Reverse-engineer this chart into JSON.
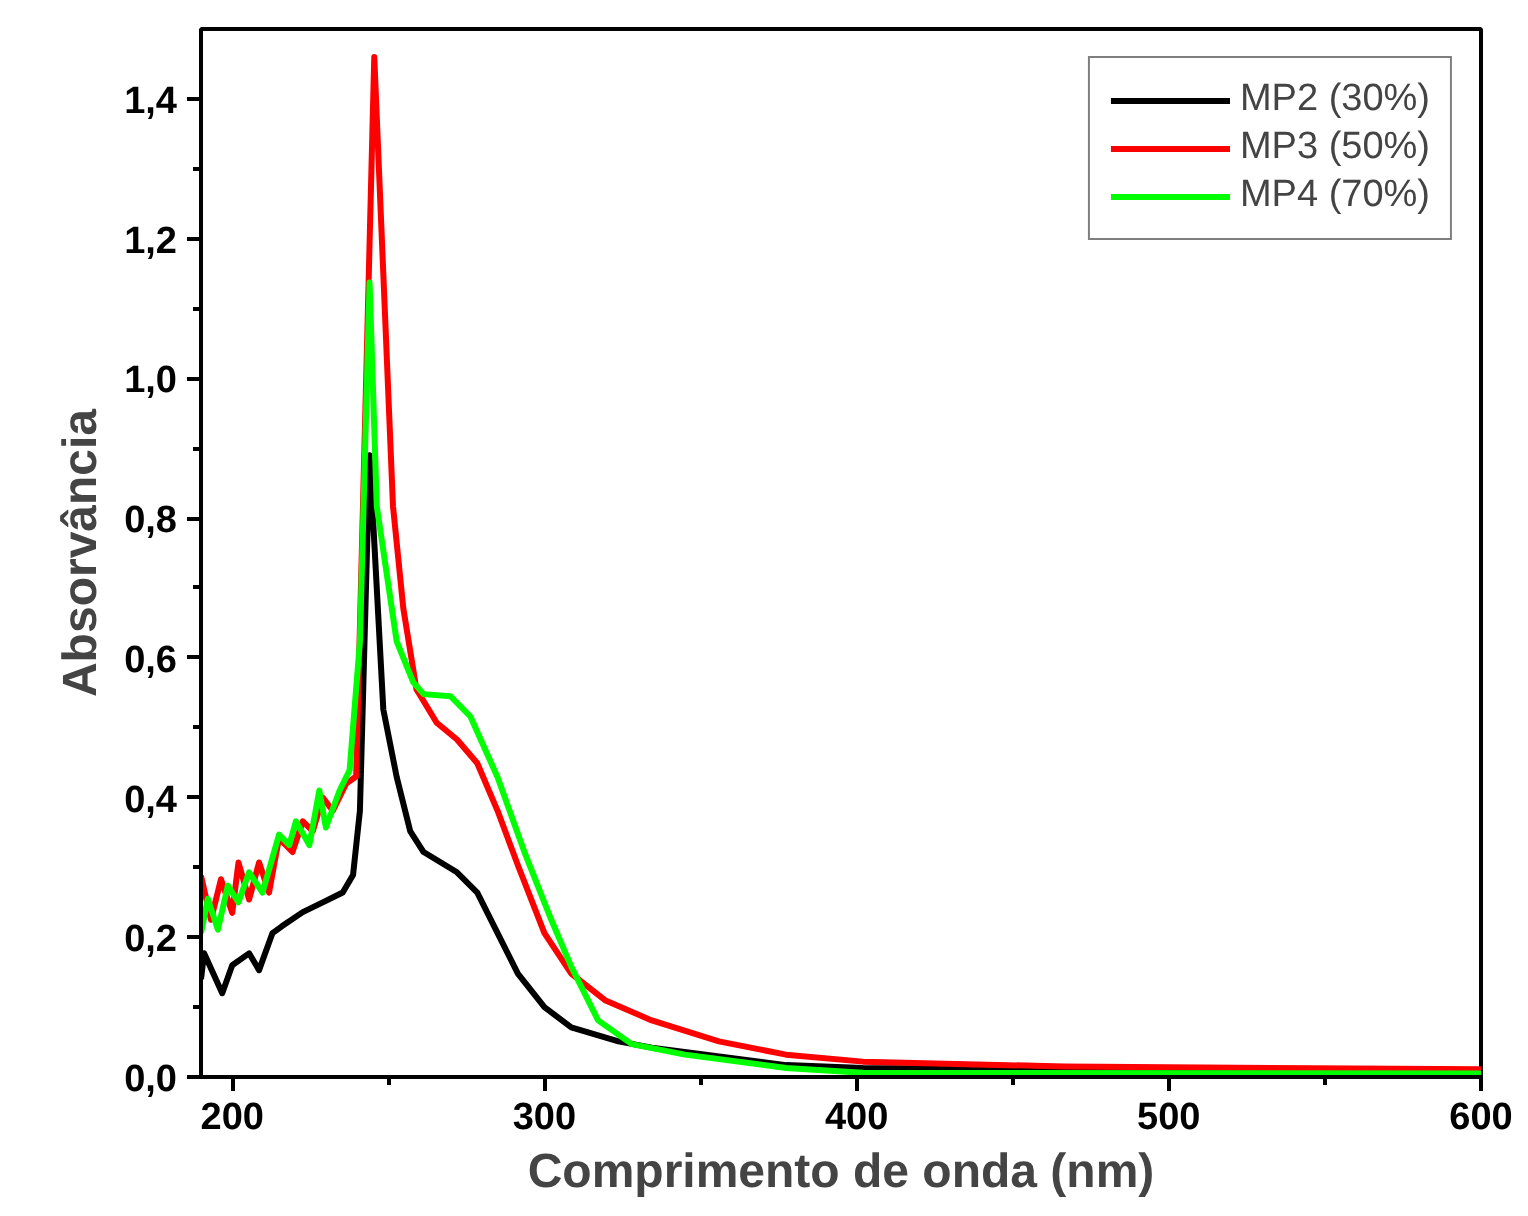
{
  "chart_data": {
    "type": "line",
    "xlabel": "Comprimento de onda (nm)",
    "ylabel": "Absorvância",
    "xlim": [
      190,
      600
    ],
    "ylim": [
      0,
      1.5
    ],
    "xticks": [
      200,
      300,
      400,
      500,
      600
    ],
    "yticks": [
      {
        "value": 0,
        "label": "0,0"
      },
      {
        "value": 0.2,
        "label": "0,2"
      },
      {
        "value": 0.4,
        "label": "0,4"
      },
      {
        "value": 0.6,
        "label": "0,6"
      },
      {
        "value": 0.8,
        "label": "0,8"
      },
      {
        "value": 1.0,
        "label": "1,0"
      },
      {
        "value": 1.2,
        "label": "1,2"
      },
      {
        "value": 1.4,
        "label": "1,4"
      }
    ],
    "grid": false,
    "legend": "top right",
    "marker": "none",
    "line_style": "solid",
    "series": [
      {
        "name": "MP2 (30%)",
        "color": "#000000",
        "x": [
          190,
          191,
          196.8,
          200,
          205.4,
          208.6,
          212.9,
          216,
          222.6,
          229,
          235.4,
          238.7,
          240.9,
          244,
          248.4,
          252.7,
          257,
          261.3,
          272,
          278.5,
          285,
          291.5,
          300,
          308.6,
          323.7,
          334.4,
          377.4,
          402,
          600
        ],
        "values": [
          0.14,
          0.177,
          0.12,
          0.16,
          0.177,
          0.153,
          0.206,
          0.216,
          0.236,
          0.25,
          0.264,
          0.289,
          0.381,
          0.89,
          0.526,
          0.429,
          0.352,
          0.322,
          0.293,
          0.264,
          0.206,
          0.148,
          0.1,
          0.071,
          0.051,
          0.042,
          0.017,
          0.013,
          0.005
        ]
      },
      {
        "name": "MP3 (50%)",
        "color": "#ff0000",
        "x": [
          190,
          193.2,
          196.4,
          200,
          202,
          205.4,
          208.6,
          211.8,
          215,
          219.3,
          222.6,
          225.8,
          229,
          232.2,
          236.5,
          239.7,
          245.5,
          251.5,
          254.8,
          259,
          265.5,
          272,
          278.5,
          285,
          291.5,
          300,
          308.6,
          319.4,
          334.4,
          355.9,
          377.4,
          402,
          466.5,
          600
        ],
        "values": [
          0.288,
          0.225,
          0.283,
          0.235,
          0.307,
          0.254,
          0.307,
          0.264,
          0.342,
          0.322,
          0.366,
          0.352,
          0.4,
          0.381,
          0.42,
          0.43,
          1.46,
          0.817,
          0.671,
          0.555,
          0.507,
          0.483,
          0.449,
          0.381,
          0.303,
          0.206,
          0.148,
          0.11,
          0.081,
          0.051,
          0.032,
          0.022,
          0.015,
          0.011
        ]
      },
      {
        "name": "MP4 (70%)",
        "color": "#00ff00",
        "x": [
          190,
          192.2,
          195.4,
          198.6,
          202,
          205.4,
          209.7,
          215,
          218.3,
          220.4,
          224.7,
          227.9,
          230,
          234.4,
          237.6,
          240.9,
          244,
          246.3,
          252.7,
          258,
          261.3,
          269.9,
          276.3,
          285,
          293.6,
          302.2,
          308.6,
          317.2,
          328,
          345,
          377.4,
          402,
          600
        ],
        "values": [
          0.206,
          0.255,
          0.211,
          0.274,
          0.25,
          0.293,
          0.264,
          0.347,
          0.332,
          0.366,
          0.332,
          0.41,
          0.357,
          0.41,
          0.439,
          0.623,
          1.137,
          0.817,
          0.623,
          0.565,
          0.548,
          0.545,
          0.516,
          0.429,
          0.322,
          0.225,
          0.158,
          0.081,
          0.047,
          0.032,
          0.013,
          0.006,
          0.005
        ]
      }
    ]
  }
}
